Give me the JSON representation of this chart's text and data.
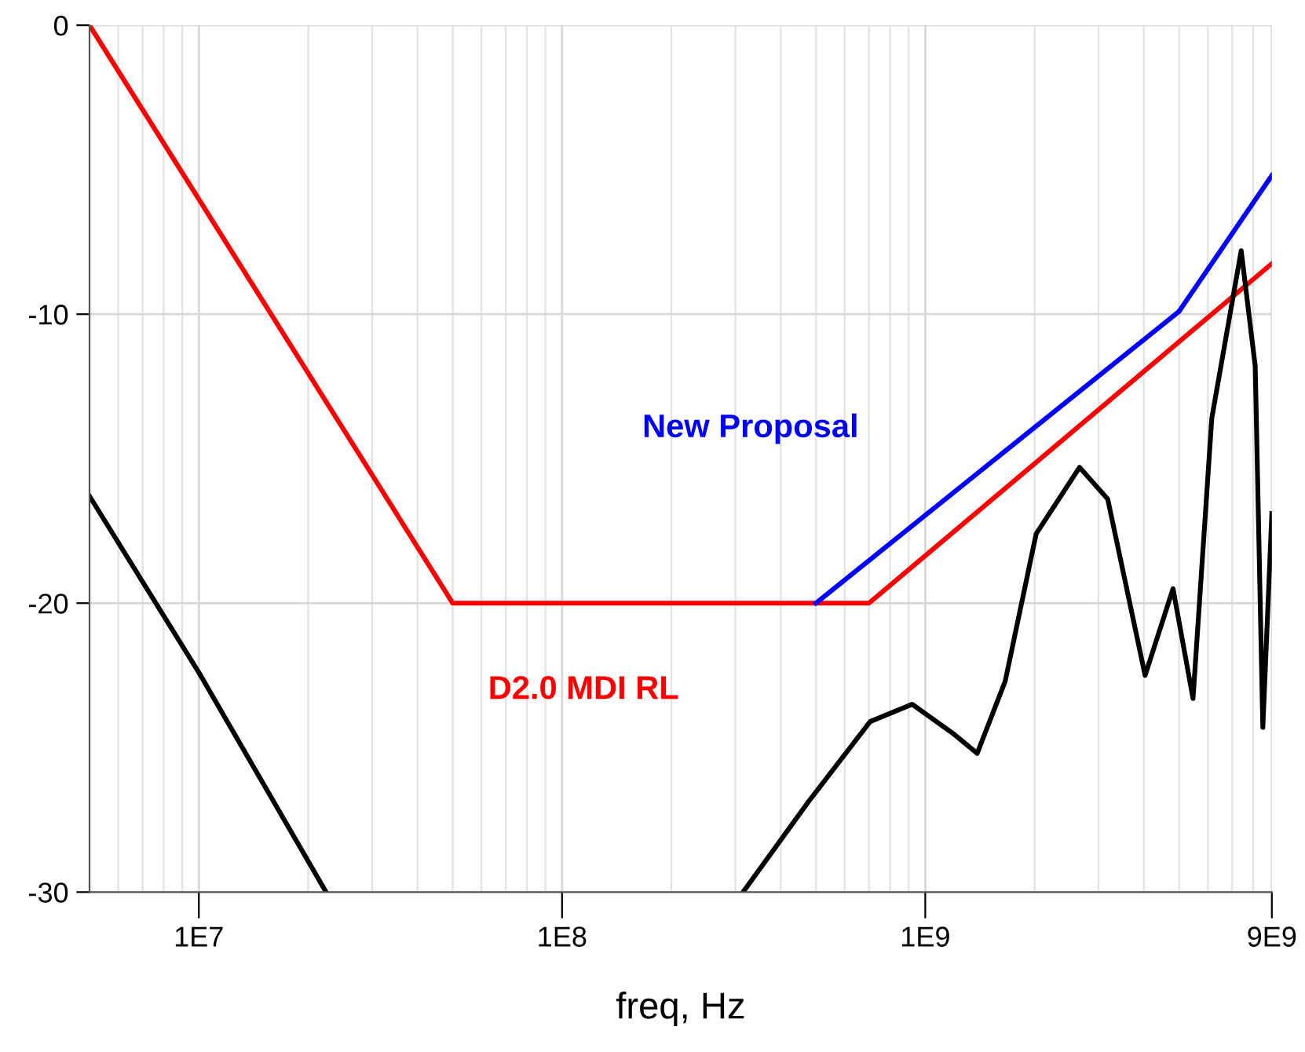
{
  "chart_data": {
    "type": "line",
    "xlabel": "freq, Hz",
    "log": "x",
    "grid": true,
    "legend": false,
    "xlim": [
      5000000,
      9000000000
    ],
    "xticks": [
      {
        "value": 10000000,
        "label": "1E7"
      },
      {
        "value": 100000000,
        "label": "1E8"
      },
      {
        "value": 1000000000,
        "label": "1E9"
      },
      {
        "value": 9000000000,
        "label": "9E9"
      }
    ],
    "ylim": [
      -30,
      0
    ],
    "yticks": [
      -30,
      -20,
      -10,
      0
    ],
    "series": [
      {
        "name": "D2.0 MDI RL",
        "color": "#ff0000",
        "x": [
          5000000,
          50000000,
          700000000,
          9000000000
        ],
        "values": [
          0,
          -20,
          -20,
          -8.25
        ]
      },
      {
        "name": "New Proposal",
        "color": "#0000ff",
        "x": [
          500000000,
          5000000000,
          9000000000
        ],
        "values": [
          -20,
          -9.9,
          -5.2
        ]
      },
      {
        "color": "#000000",
        "x": [
          5000000,
          10000000,
          22400000,
          100000000,
          315000000,
          475000000,
          705000000,
          920000000,
          1190000000,
          1390000000,
          1660000000,
          2020000000,
          2660000000,
          3180000000,
          4030000000,
          4810000000,
          5460000000,
          6150000000,
          7410000000,
          8100000000,
          8500000000,
          9000000000
        ],
        "values": [
          -16.3,
          -22.4,
          -30,
          null,
          -30,
          -26.9,
          -24.1,
          -23.5,
          -24.5,
          -25.2,
          -22.7,
          -17.6,
          -15.3,
          -16.4,
          -22.5,
          -19.5,
          -23.3,
          -13.6,
          -7.8,
          -11.8,
          -24.3,
          -16.9
        ]
      }
    ]
  }
}
